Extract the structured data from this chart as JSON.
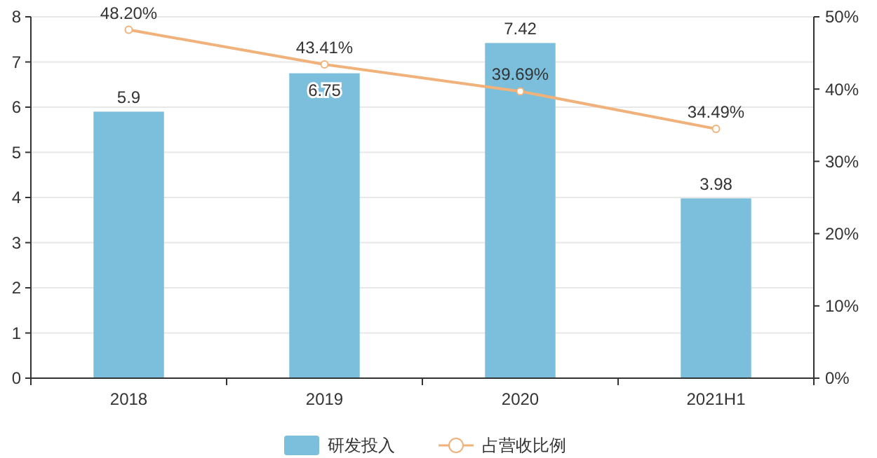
{
  "chart_data": {
    "type": "bar",
    "categories": [
      "2018",
      "2019",
      "2020",
      "2021H1"
    ],
    "series": [
      {
        "name": "研发投入",
        "color": "#7bbfdc",
        "values": [
          5.9,
          6.75,
          7.42,
          3.98
        ],
        "value_labels": [
          "5.9",
          "6.75",
          "7.42",
          "3.98"
        ]
      },
      {
        "name": "占营收比例",
        "type": "line",
        "axis": "y2",
        "color": "#f0b27a",
        "values": [
          48.2,
          43.41,
          39.69,
          34.49
        ],
        "value_labels": [
          "48.20%",
          "43.41%",
          "39.69%",
          "34.49%"
        ]
      }
    ],
    "ylim": [
      0,
      8
    ],
    "yticks": [
      0,
      1,
      2,
      3,
      4,
      5,
      6,
      7,
      8
    ],
    "y2lim": [
      0,
      50
    ],
    "y2ticks": [
      {
        "value": 0,
        "label": "0%"
      },
      {
        "value": 10,
        "label": "10%"
      },
      {
        "value": 20,
        "label": "20%"
      },
      {
        "value": 30,
        "label": "30%"
      },
      {
        "value": 40,
        "label": "40%"
      },
      {
        "value": 50,
        "label": "50%"
      }
    ],
    "grid": "y",
    "legend": "bottom",
    "marker": "circle",
    "line_style": "solid"
  }
}
